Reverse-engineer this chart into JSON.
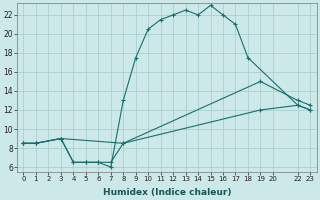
{
  "xlabel": "Humidex (Indice chaleur)",
  "bg_color": "#cce8e8",
  "grid_color": "#aacfcf",
  "line_color": "#1a6e6e",
  "xlim": [
    -0.5,
    23.5
  ],
  "ylim": [
    5.5,
    23.2
  ],
  "xtick_positions": [
    0,
    1,
    2,
    3,
    4,
    5,
    6,
    7,
    8,
    9,
    10,
    11,
    12,
    13,
    14,
    15,
    16,
    17,
    18,
    19,
    20,
    22,
    23
  ],
  "ytick_positions": [
    6,
    8,
    10,
    12,
    14,
    16,
    18,
    20,
    22
  ],
  "curve1_x": [
    0,
    1,
    3,
    4,
    5,
    6,
    7,
    8,
    9,
    10,
    11,
    12,
    13,
    14,
    15,
    16,
    17,
    18,
    22,
    23
  ],
  "curve1_y": [
    8.5,
    8.5,
    9,
    6.5,
    6.5,
    6.5,
    6,
    13,
    17.5,
    20.5,
    21.5,
    22,
    22.5,
    22,
    23,
    22,
    21,
    17.5,
    12.5,
    12
  ],
  "curve2_x": [
    0,
    1,
    3,
    4,
    5,
    6,
    7,
    8,
    19,
    22,
    23
  ],
  "curve2_y": [
    8.5,
    8.5,
    9,
    6.5,
    6.5,
    6.5,
    6.5,
    8.5,
    15,
    13,
    12.5
  ],
  "curve3_x": [
    0,
    1,
    3,
    8,
    19,
    22,
    23
  ],
  "curve3_y": [
    8.5,
    8.5,
    9,
    8.5,
    12,
    12.5,
    12
  ]
}
